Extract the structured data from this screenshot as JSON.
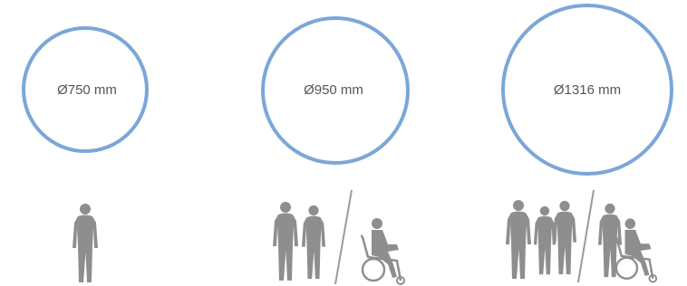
{
  "items": [
    {
      "label": "Ø750 mm"
    },
    {
      "label": "Ø950 mm"
    },
    {
      "label": "Ø1316 mm"
    }
  ]
}
